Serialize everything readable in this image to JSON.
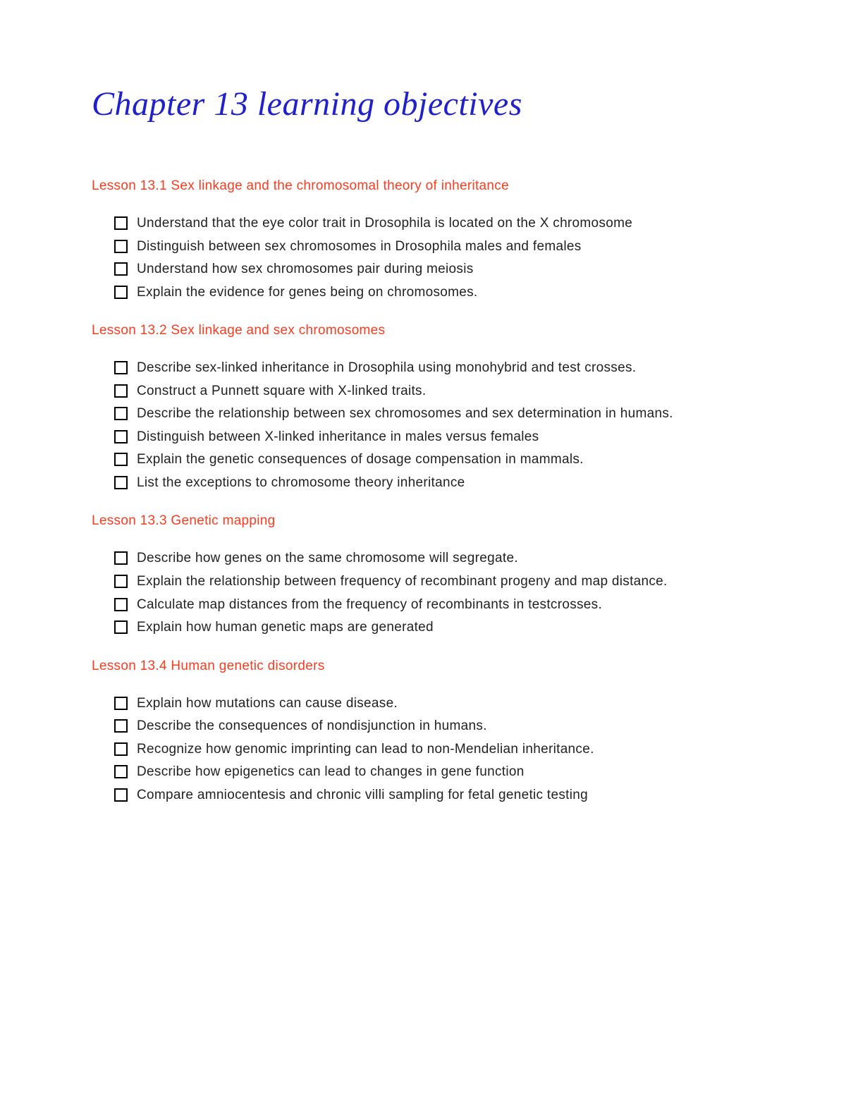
{
  "title": "Chapter 13 learning objectives",
  "title_color": "#2020cc",
  "title_fontsize": 48,
  "lesson_color": "#ff3b1f",
  "body_color": "#222222",
  "body_fontsize": 19,
  "background_color": "#ffffff",
  "checkbox_border_color": "#000000",
  "lessons": [
    {
      "title": "Lesson 13.1 Sex linkage and the chromosomal theory of inheritance",
      "items": [
        "Understand that the eye color trait in Drosophila is located on the X chromosome",
        "Distinguish between sex chromosomes in Drosophila males and females",
        "Understand how sex chromosomes pair during meiosis",
        "Explain the evidence for genes being on chromosomes."
      ]
    },
    {
      "title": "Lesson 13.2 Sex linkage and sex chromosomes",
      "items": [
        "Describe sex-linked inheritance in Drosophila using monohybrid and test crosses.",
        "Construct a Punnett square with X-linked traits.",
        "Describe the relationship between sex chromosomes and sex determination in humans.",
        "Distinguish between X-linked inheritance in males versus females",
        "Explain the genetic consequences of dosage compensation in mammals.",
        "List the exceptions to chromosome theory inheritance"
      ]
    },
    {
      "title": "Lesson 13.3 Genetic mapping",
      "items": [
        "Describe how genes on the same chromosome will segregate.",
        "Explain the relationship between frequency of recombinant progeny and map distance.",
        "Calculate map distances from the frequency of recombinants in testcrosses.",
        "Explain how human genetic maps are generated"
      ]
    },
    {
      "title": "Lesson 13.4 Human genetic disorders",
      "items": [
        "Explain how mutations can cause disease.",
        "Describe the consequences of nondisjunction in humans.",
        "Recognize how genomic imprinting can lead to non-Mendelian inheritance.",
        "Describe how epigenetics can lead to changes in gene function",
        "Compare amniocentesis and chronic villi sampling for fetal genetic testing"
      ]
    }
  ]
}
